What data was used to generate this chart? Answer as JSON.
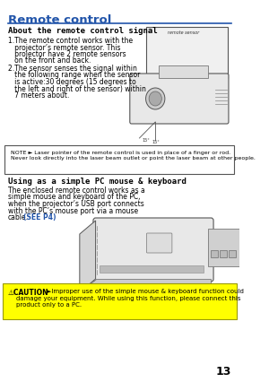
{
  "page_number": "13",
  "title": "Remote control",
  "title_color": "#2255aa",
  "title_underline_color": "#2255aa",
  "background_color": "#ffffff",
  "section1_header": "About the remote control signal",
  "item1_text": "1.The remote control works with the\n   projector’s remote sensor. This\n   projector have 2 remote sensors\n   on the front and back.",
  "item2_text": "2.The sensor senses the signal within\n   the following range when the sensor\n   is active:30 degrees (15 degrees to\n   the left and right of the sensor) within\n   7 meters about.",
  "note_text": "NOTE ► Laser pointer of the remote control is used in place of a finger or rod.\nNever look directly into the laser beam outlet or point the laser beam at other people.",
  "section2_header": "Using as a simple PC mouse & keyboard",
  "section2_text": "The enclosed remote control works as a\nsimple mouse and keyboard of the PC,\nwhen the projector’s USB port connects\nwith the PC’s mouse port via a mouse\ncable.(SEE P4)",
  "caution_label": "⚠CAUTION",
  "caution_text": "►Improper use of the simple mouse & keyboard function could\ndamage your equipment. While using this function, please connect this\nproduct only to a PC.",
  "caution_bg": "#ffff00",
  "caution_border": "#999900",
  "note_border": "#555555",
  "note_bg": "#ffffff",
  "header_font_size": 6.5,
  "body_font_size": 5.5,
  "title_font_size": 9.5
}
